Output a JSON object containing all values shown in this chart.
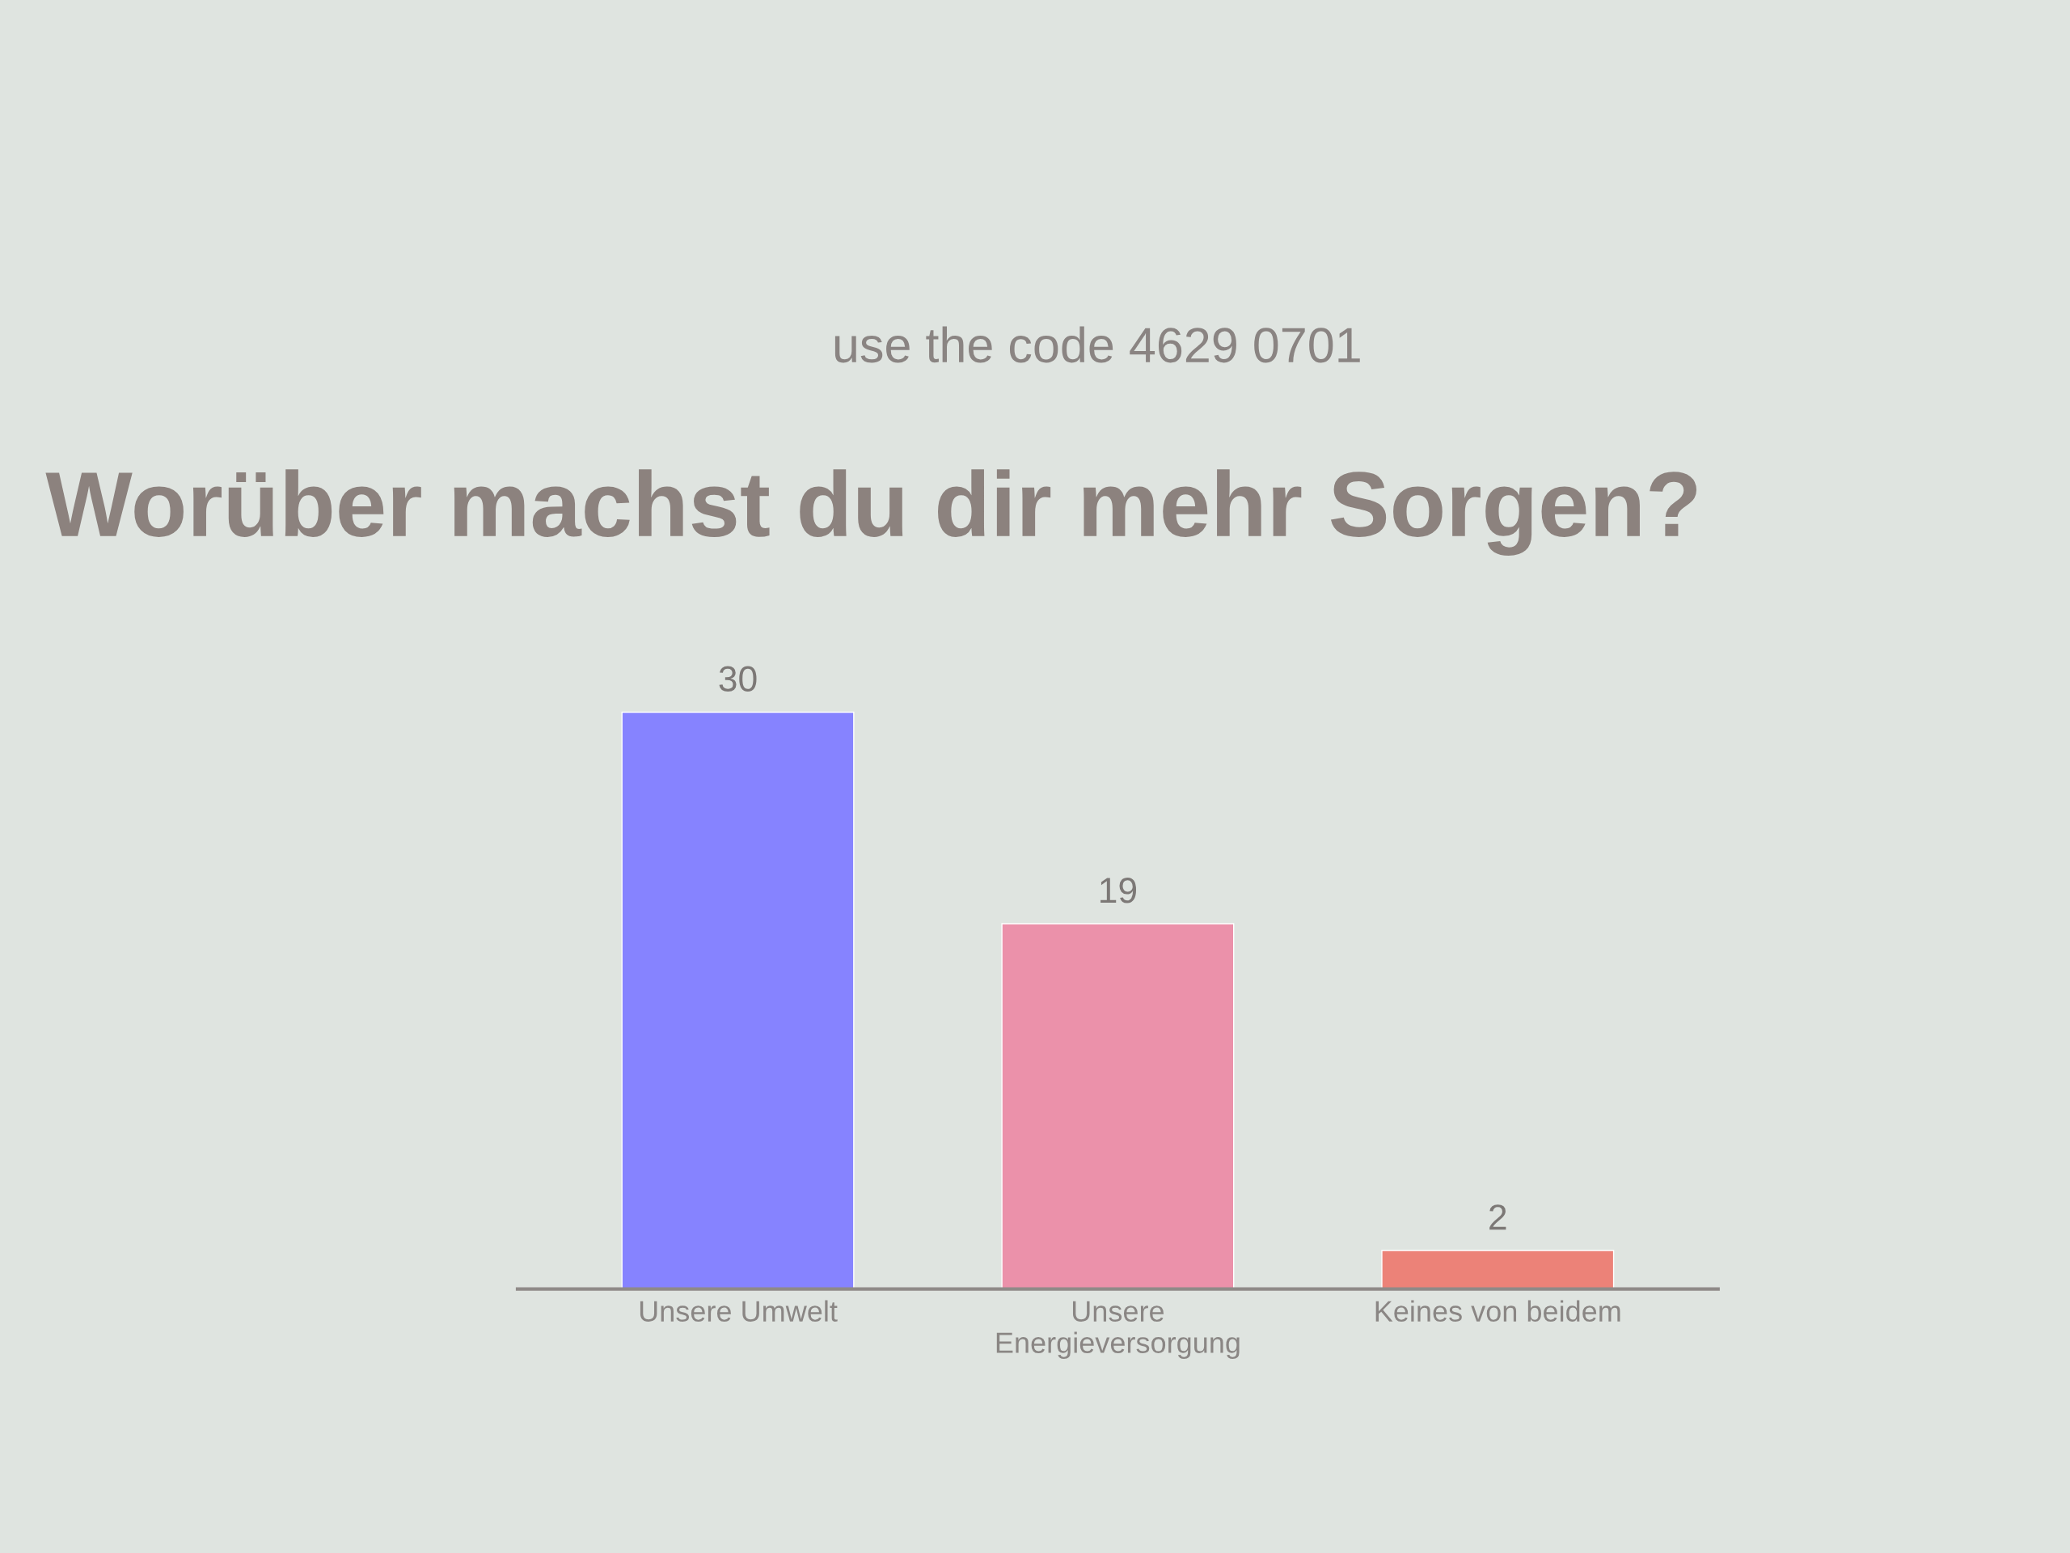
{
  "chart_data": {
    "type": "bar",
    "title": "Worüber machst du dir mehr Sorgen?",
    "annotations": [
      "use the code 4629 0701"
    ],
    "categories": [
      "Unsere Umwelt",
      "Unsere Energieversorgung",
      "Keines von beidem"
    ],
    "values": [
      30,
      19,
      2
    ],
    "colors": [
      "#8683ff",
      "#eb91aa",
      "#ec8278"
    ],
    "data_labels": true,
    "tick_labels": "x"
  }
}
